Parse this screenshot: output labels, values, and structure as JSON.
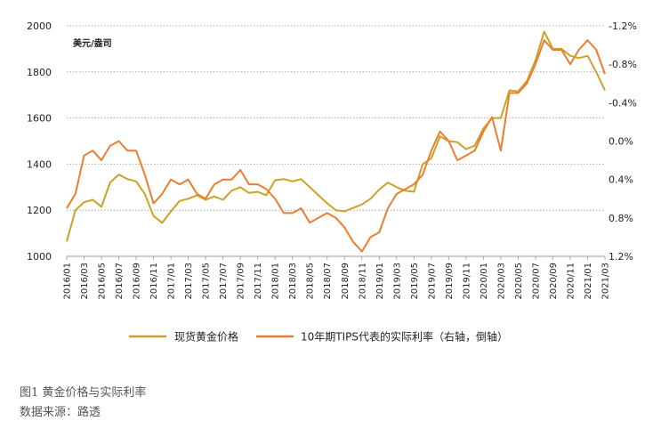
{
  "chart_data": {
    "type": "line",
    "unit_label": "美元/盎司",
    "left_axis": {
      "ylim": [
        1000,
        2000
      ],
      "ticks": [
        "1000",
        "1200",
        "1400",
        "1600",
        "1800",
        "2000"
      ]
    },
    "right_axis": {
      "inverted": true,
      "ylim": [
        -1.2,
        1.2
      ],
      "ticks": [
        "-1.2%",
        "-0.8%",
        "-0.4%",
        "0.0%",
        "0.4%",
        "0.8%",
        "1.2%"
      ]
    },
    "x_ticks": [
      "2016/01",
      "2016/03",
      "2016/05",
      "2016/07",
      "2016/09",
      "2016/11",
      "2017/01",
      "2017/03",
      "2017/05",
      "2017/07",
      "2017/09",
      "2017/11",
      "2018/01",
      "2018/03",
      "2018/05",
      "2018/07",
      "2018/09",
      "2018/11",
      "2019/01",
      "2019/03",
      "2019/05",
      "2019/07",
      "2019/09",
      "2019/11",
      "2020/01",
      "2020/03",
      "2020/05",
      "2020/07",
      "2020/09",
      "2020/11",
      "2021/01",
      "2021/03"
    ],
    "grid": true,
    "legend_position": "bottom",
    "colors": {
      "gold": "#c9a227",
      "tips": "#ed7d31"
    },
    "series": [
      {
        "name": "现货黄金价格",
        "axis": "left",
        "color": "#c9a227",
        "x": [
          "2016/01",
          "2016/02",
          "2016/03",
          "2016/04",
          "2016/05",
          "2016/06",
          "2016/07",
          "2016/08",
          "2016/09",
          "2016/10",
          "2016/11",
          "2016/12",
          "2017/01",
          "2017/02",
          "2017/03",
          "2017/04",
          "2017/05",
          "2017/06",
          "2017/07",
          "2017/08",
          "2017/09",
          "2017/10",
          "2017/11",
          "2017/12",
          "2018/01",
          "2018/02",
          "2018/03",
          "2018/04",
          "2018/05",
          "2018/06",
          "2018/07",
          "2018/08",
          "2018/09",
          "2018/10",
          "2018/11",
          "2018/12",
          "2019/01",
          "2019/02",
          "2019/03",
          "2019/04",
          "2019/05",
          "2019/06",
          "2019/07",
          "2019/08",
          "2019/09",
          "2019/10",
          "2019/11",
          "2019/12",
          "2020/01",
          "2020/02",
          "2020/03",
          "2020/04",
          "2020/05",
          "2020/06",
          "2020/07",
          "2020/08",
          "2020/09",
          "2020/10",
          "2020/11",
          "2020/12",
          "2021/01",
          "2021/02",
          "2021/03"
        ],
        "values": [
          1065,
          1200,
          1235,
          1245,
          1215,
          1320,
          1355,
          1335,
          1325,
          1270,
          1175,
          1145,
          1195,
          1240,
          1250,
          1265,
          1245,
          1260,
          1245,
          1285,
          1300,
          1275,
          1280,
          1265,
          1330,
          1335,
          1325,
          1335,
          1300,
          1265,
          1230,
          1200,
          1195,
          1210,
          1225,
          1250,
          1290,
          1320,
          1300,
          1285,
          1280,
          1400,
          1425,
          1520,
          1500,
          1495,
          1465,
          1480,
          1555,
          1600,
          1600,
          1720,
          1715,
          1760,
          1850,
          1975,
          1900,
          1900,
          1870,
          1860,
          1870,
          1800,
          1720
        ]
      },
      {
        "name": "10年期TIPS代表的实际利率（右轴，倒轴）",
        "axis": "right",
        "color": "#ed7d31",
        "x": [
          "2016/01",
          "2016/02",
          "2016/03",
          "2016/04",
          "2016/05",
          "2016/06",
          "2016/07",
          "2016/08",
          "2016/09",
          "2016/10",
          "2016/11",
          "2016/12",
          "2017/01",
          "2017/02",
          "2017/03",
          "2017/04",
          "2017/05",
          "2017/06",
          "2017/07",
          "2017/08",
          "2017/09",
          "2017/10",
          "2017/11",
          "2017/12",
          "2018/01",
          "2018/02",
          "2018/03",
          "2018/04",
          "2018/05",
          "2018/06",
          "2018/07",
          "2018/08",
          "2018/09",
          "2018/10",
          "2018/11",
          "2018/12",
          "2019/01",
          "2019/02",
          "2019/03",
          "2019/04",
          "2019/05",
          "2019/06",
          "2019/07",
          "2019/08",
          "2019/09",
          "2019/10",
          "2019/11",
          "2019/12",
          "2020/01",
          "2020/02",
          "2020/03",
          "2020/04",
          "2020/05",
          "2020/06",
          "2020/07",
          "2020/08",
          "2020/09",
          "2020/10",
          "2020/11",
          "2020/12",
          "2021/01",
          "2021/02",
          "2021/03"
        ],
        "values": [
          0.7,
          0.55,
          0.15,
          0.1,
          0.2,
          0.05,
          0.0,
          0.1,
          0.1,
          0.35,
          0.65,
          0.55,
          0.4,
          0.45,
          0.4,
          0.55,
          0.6,
          0.45,
          0.4,
          0.4,
          0.3,
          0.45,
          0.45,
          0.5,
          0.6,
          0.75,
          0.75,
          0.7,
          0.85,
          0.8,
          0.75,
          0.8,
          0.9,
          1.05,
          1.15,
          1.0,
          0.95,
          0.7,
          0.55,
          0.5,
          0.45,
          0.35,
          0.1,
          -0.1,
          0.0,
          0.2,
          0.15,
          0.1,
          -0.1,
          -0.25,
          0.1,
          -0.5,
          -0.5,
          -0.6,
          -0.8,
          -1.05,
          -0.95,
          -0.95,
          -0.8,
          -0.95,
          -1.05,
          -0.95,
          -0.7
        ]
      }
    ]
  },
  "caption": {
    "figure": "图1  黄金价格与实际利率",
    "source": "数据来源：路透"
  }
}
